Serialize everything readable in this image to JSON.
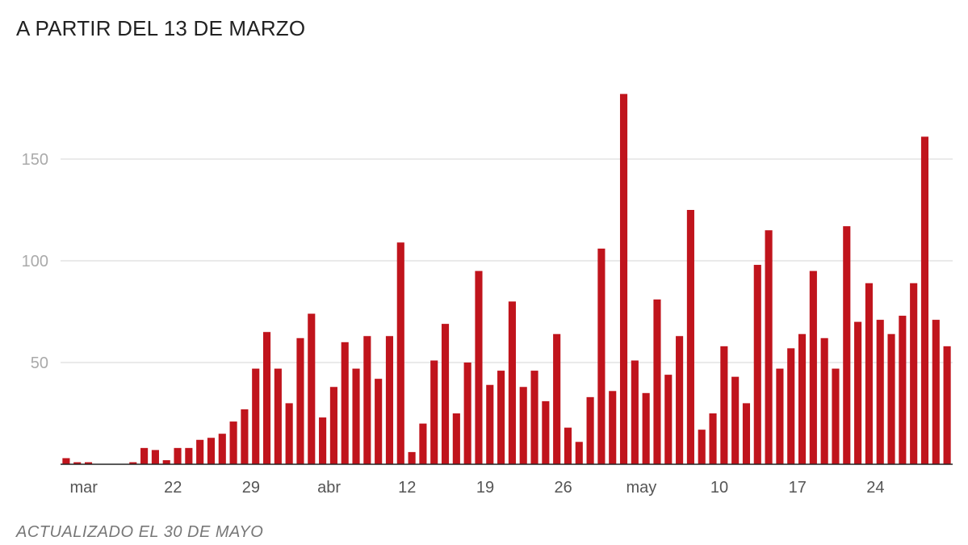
{
  "title": "A PARTIR DEL 13 DE MARZO",
  "note": "ACTUALIZADO EL 30 DE MAYO",
  "colors": {
    "bar": "#c0141c",
    "grid": "#dddddd",
    "axis": "#222222"
  },
  "chart_data": {
    "type": "bar",
    "title": "A PARTIR DEL 13 DE MARZO",
    "xlabel": "",
    "ylabel": "",
    "ylim": [
      0,
      185
    ],
    "yticks": [
      50,
      100,
      150
    ],
    "grid": true,
    "legend": "none",
    "xticks": [
      {
        "label": "mar",
        "index": 1
      },
      {
        "label": "22",
        "index": 9
      },
      {
        "label": "29",
        "index": 16
      },
      {
        "label": "abr",
        "index": 23
      },
      {
        "label": "12",
        "index": 30
      },
      {
        "label": "19",
        "index": 37
      },
      {
        "label": "26",
        "index": 44
      },
      {
        "label": "may",
        "index": 51
      },
      {
        "label": "10",
        "index": 58
      },
      {
        "label": "17",
        "index": 65
      },
      {
        "label": "24",
        "index": 72
      }
    ],
    "values": [
      3,
      1,
      1,
      0,
      0,
      0,
      1,
      8,
      7,
      2,
      8,
      8,
      12,
      13,
      15,
      21,
      27,
      47,
      65,
      47,
      30,
      62,
      74,
      23,
      38,
      60,
      47,
      63,
      42,
      63,
      109,
      6,
      20,
      51,
      69,
      25,
      50,
      95,
      39,
      46,
      80,
      38,
      46,
      31,
      64,
      18,
      11,
      33,
      106,
      36,
      182,
      51,
      35,
      81,
      44,
      63,
      125,
      17,
      25,
      58,
      43,
      30,
      98,
      115,
      47,
      57,
      64,
      95,
      62,
      47,
      117,
      70,
      89,
      71,
      64,
      73,
      89,
      161,
      71,
      58
    ]
  }
}
